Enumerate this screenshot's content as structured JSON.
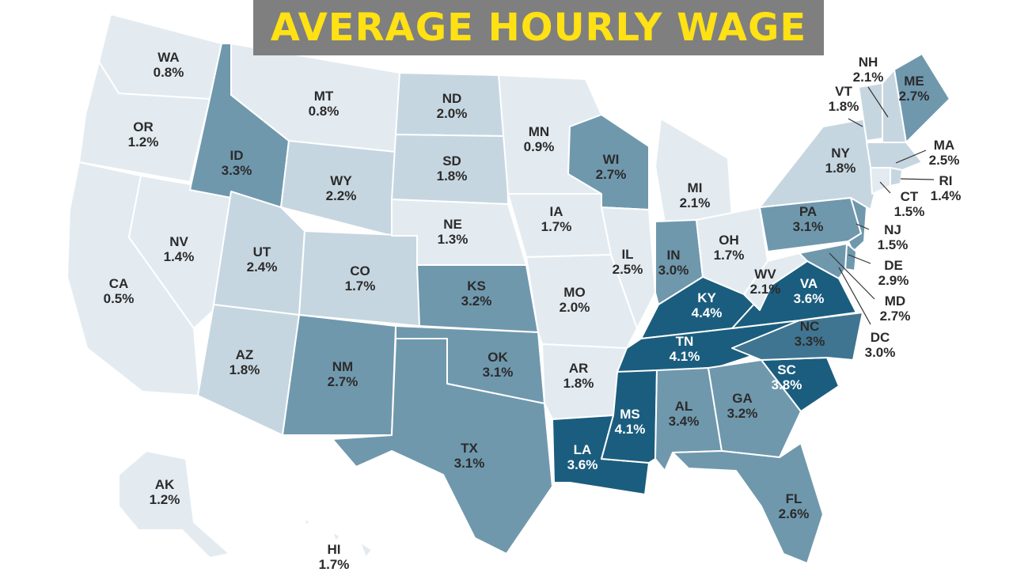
{
  "title": "AVERAGE HOURLY WAGE",
  "colors": {
    "banner_bg": "#7f7f7f",
    "title_text": "#ffe114",
    "shade_1": "#e3ebf1",
    "shade_2": "#c6d6e0",
    "shade_3": "#a7c0cf",
    "shade_4": "#6f98ad",
    "shade_5": "#3f7591",
    "shade_6": "#1b5d7e",
    "border": "#ffffff"
  },
  "states": [
    {
      "code": "WA",
      "value": "0.8%"
    },
    {
      "code": "OR",
      "value": "1.2%"
    },
    {
      "code": "CA",
      "value": "0.5%"
    },
    {
      "code": "NV",
      "value": "1.4%"
    },
    {
      "code": "ID",
      "value": "3.3%"
    },
    {
      "code": "MT",
      "value": "0.8%"
    },
    {
      "code": "WY",
      "value": "2.2%"
    },
    {
      "code": "UT",
      "value": "2.4%"
    },
    {
      "code": "AZ",
      "value": "1.8%"
    },
    {
      "code": "CO",
      "value": "1.7%"
    },
    {
      "code": "NM",
      "value": "2.7%"
    },
    {
      "code": "ND",
      "value": "2.0%"
    },
    {
      "code": "SD",
      "value": "1.8%"
    },
    {
      "code": "NE",
      "value": "1.3%"
    },
    {
      "code": "KS",
      "value": "3.2%"
    },
    {
      "code": "OK",
      "value": "3.1%"
    },
    {
      "code": "TX",
      "value": "3.1%"
    },
    {
      "code": "MN",
      "value": "0.9%"
    },
    {
      "code": "IA",
      "value": "1.7%"
    },
    {
      "code": "MO",
      "value": "2.0%"
    },
    {
      "code": "AR",
      "value": "1.8%"
    },
    {
      "code": "LA",
      "value": "3.6%"
    },
    {
      "code": "WI",
      "value": "2.7%"
    },
    {
      "code": "IL",
      "value": "2.5%"
    },
    {
      "code": "MI",
      "value": "2.1%"
    },
    {
      "code": "IN",
      "value": "3.0%"
    },
    {
      "code": "OH",
      "value": "1.7%"
    },
    {
      "code": "KY",
      "value": "4.4%"
    },
    {
      "code": "TN",
      "value": "4.1%"
    },
    {
      "code": "MS",
      "value": "4.1%"
    },
    {
      "code": "AL",
      "value": "3.4%"
    },
    {
      "code": "GA",
      "value": "3.2%"
    },
    {
      "code": "FL",
      "value": "2.6%"
    },
    {
      "code": "SC",
      "value": "3.8%"
    },
    {
      "code": "NC",
      "value": "3.3%"
    },
    {
      "code": "VA",
      "value": "3.6%"
    },
    {
      "code": "WV",
      "value": "2.1%"
    },
    {
      "code": "PA",
      "value": "3.1%"
    },
    {
      "code": "NY",
      "value": "1.8%"
    },
    {
      "code": "VT",
      "value": "1.8%"
    },
    {
      "code": "NH",
      "value": "2.1%"
    },
    {
      "code": "ME",
      "value": "2.7%"
    },
    {
      "code": "MA",
      "value": "2.5%"
    },
    {
      "code": "RI",
      "value": "1.4%"
    },
    {
      "code": "CT",
      "value": "1.5%"
    },
    {
      "code": "NJ",
      "value": "1.5%"
    },
    {
      "code": "DE",
      "value": "2.9%"
    },
    {
      "code": "MD",
      "value": "2.7%"
    },
    {
      "code": "DC",
      "value": "3.0%"
    },
    {
      "code": "AK",
      "value": "1.2%"
    },
    {
      "code": "HI",
      "value": "1.7%"
    }
  ]
}
